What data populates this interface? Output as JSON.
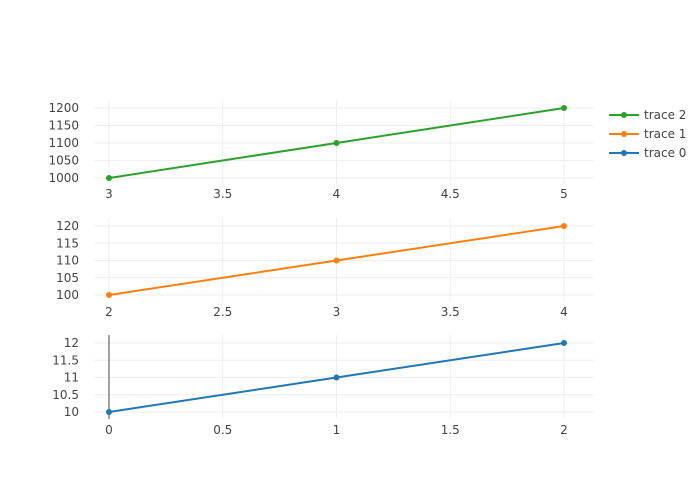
{
  "chart_data": {
    "type": "line",
    "legend": {
      "placement": "top-right",
      "order": [
        "trace 2",
        "trace 1",
        "trace 0"
      ]
    },
    "grid": true,
    "subplots": [
      {
        "series_name": "trace 2",
        "color": "#2ca02c",
        "x": [
          3,
          4,
          5
        ],
        "y": [
          1000,
          1100,
          1200
        ],
        "xlim": [
          3,
          5
        ],
        "ylim": [
          1000,
          1200
        ],
        "xticks": [
          3,
          3.5,
          4,
          4.5,
          5
        ],
        "yticks": [
          1000,
          1050,
          1100,
          1150,
          1200
        ],
        "zero_line": false
      },
      {
        "series_name": "trace 1",
        "color": "#ff7f0e",
        "x": [
          2,
          3,
          4
        ],
        "y": [
          100,
          110,
          120
        ],
        "xlim": [
          2,
          4
        ],
        "ylim": [
          100,
          120
        ],
        "xticks": [
          2,
          2.5,
          3,
          3.5,
          4
        ],
        "yticks": [
          100,
          105,
          110,
          115,
          120
        ],
        "zero_line": false
      },
      {
        "series_name": "trace 0",
        "color": "#1f77b4",
        "x": [
          0,
          1,
          2
        ],
        "y": [
          10,
          11,
          12
        ],
        "xlim": [
          0,
          2
        ],
        "ylim": [
          10,
          12
        ],
        "xticks": [
          0,
          0.5,
          1,
          1.5,
          2
        ],
        "yticks": [
          10,
          10.5,
          11,
          11.5,
          12
        ],
        "zero_line": true
      }
    ]
  }
}
